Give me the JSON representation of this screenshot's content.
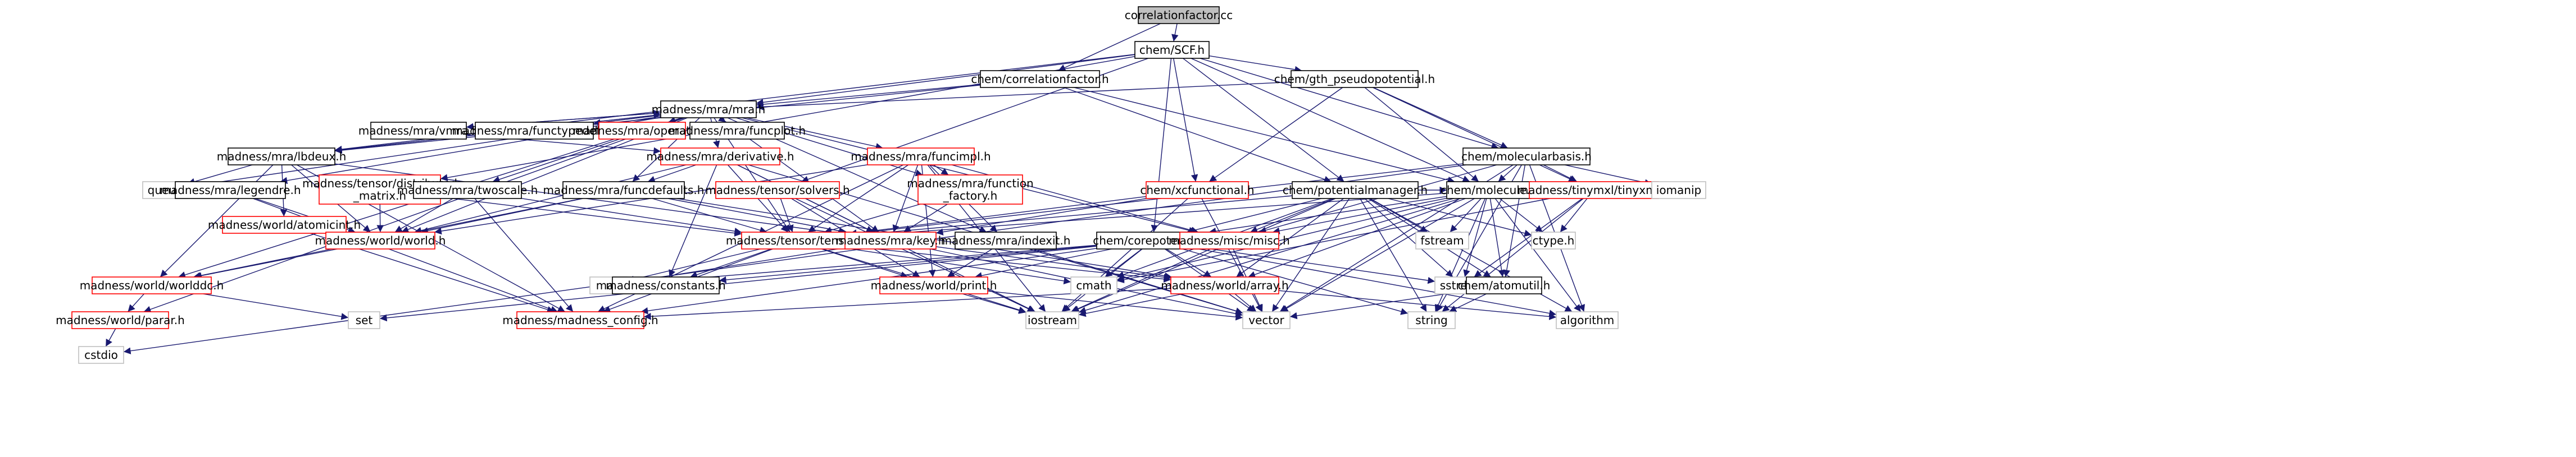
{
  "nodes": [
    {
      "id": "root",
      "label": "correlationfactor.cc",
      "kind": "root"
    },
    {
      "id": "scf",
      "label": "chem/SCF.h",
      "kind": "normal"
    },
    {
      "id": "corrf",
      "label": "chem/correlationfactor.h",
      "kind": "normal"
    },
    {
      "id": "gth",
      "label": "chem/gth_pseudopotential.h",
      "kind": "normal"
    },
    {
      "id": "mra",
      "label": "madness/mra/mra.h",
      "kind": "normal"
    },
    {
      "id": "vmra",
      "label": "madness/mra/vmra.h",
      "kind": "normal"
    },
    {
      "id": "ftypedefs",
      "label": "madness/mra/functypedefs.h",
      "kind": "normal"
    },
    {
      "id": "operator",
      "label": "madness/mra/operator.h",
      "kind": "red"
    },
    {
      "id": "funcplot",
      "label": "madness/mra/funcplot.h",
      "kind": "normal"
    },
    {
      "id": "lbdeux",
      "label": "madness/mra/lbdeux.h",
      "kind": "normal"
    },
    {
      "id": "derivative",
      "label": "madness/mra/derivative.h",
      "kind": "red"
    },
    {
      "id": "funcimpl",
      "label": "madness/mra/funcimpl.h",
      "kind": "red"
    },
    {
      "id": "molbasis",
      "label": "chem/molecularbasis.h",
      "kind": "normal"
    },
    {
      "id": "queue",
      "label": "queue",
      "kind": "plain"
    },
    {
      "id": "legendre",
      "label": "madness/mra/legendre.h",
      "kind": "normal"
    },
    {
      "id": "distmatrix",
      "label": "madness/tensor/distributed\n_matrix.h",
      "kind": "red"
    },
    {
      "id": "twoscale",
      "label": "madness/mra/twoscale.h",
      "kind": "normal"
    },
    {
      "id": "funcdefaults",
      "label": "madness/mra/funcdefaults.h",
      "kind": "normal"
    },
    {
      "id": "solvers",
      "label": "madness/tensor/solvers.h",
      "kind": "red"
    },
    {
      "id": "funcfactory",
      "label": "madness/mra/function\n_factory.h",
      "kind": "red"
    },
    {
      "id": "xcfunc",
      "label": "chem/xcfunctional.h",
      "kind": "red"
    },
    {
      "id": "potmgr",
      "label": "chem/potentialmanager.h",
      "kind": "normal"
    },
    {
      "id": "molecule",
      "label": "chem/molecule.h",
      "kind": "normal"
    },
    {
      "id": "tinyxml",
      "label": "madness/tinymxl/tinyxml.h",
      "kind": "red"
    },
    {
      "id": "iomanip",
      "label": "iomanip",
      "kind": "plain"
    },
    {
      "id": "atomutil",
      "label": "madness/world/atomicint.h",
      "kind": "red"
    },
    {
      "id": "world",
      "label": "madness/world/world.h",
      "kind": "red"
    },
    {
      "id": "tensor",
      "label": "madness/tensor/tensor.h",
      "kind": "red"
    },
    {
      "id": "key",
      "label": "madness/mra/key.h",
      "kind": "red"
    },
    {
      "id": "indexit",
      "label": "madness/mra/indexit.h",
      "kind": "normal"
    },
    {
      "id": "corepot",
      "label": "chem/corepotential.h",
      "kind": "normal"
    },
    {
      "id": "misc",
      "label": "madness/misc/misc.h",
      "kind": "red"
    },
    {
      "id": "fstream",
      "label": "fstream",
      "kind": "plain"
    },
    {
      "id": "ctype",
      "label": "ctype.h",
      "kind": "plain"
    },
    {
      "id": "worlddc",
      "label": "madness/world/worlddc.h",
      "kind": "red"
    },
    {
      "id": "map",
      "label": "map",
      "kind": "plain"
    },
    {
      "id": "constants",
      "label": "madness/constants.h",
      "kind": "normal"
    },
    {
      "id": "print",
      "label": "madness/world/print.h",
      "kind": "red"
    },
    {
      "id": "cmath",
      "label": "cmath",
      "kind": "plain"
    },
    {
      "id": "array",
      "label": "madness/world/array.h",
      "kind": "red"
    },
    {
      "id": "sstream",
      "label": "sstream",
      "kind": "plain"
    },
    {
      "id": "atomutilh",
      "label": "chem/atomutil.h",
      "kind": "normal"
    },
    {
      "id": "parar",
      "label": "madness/world/parar.h",
      "kind": "red"
    },
    {
      "id": "set",
      "label": "set",
      "kind": "plain"
    },
    {
      "id": "config",
      "label": "madness/madness_config.h",
      "kind": "red"
    },
    {
      "id": "iostream",
      "label": "iostream",
      "kind": "plain"
    },
    {
      "id": "vector",
      "label": "vector",
      "kind": "plain"
    },
    {
      "id": "string",
      "label": "string",
      "kind": "plain"
    },
    {
      "id": "algorithm",
      "label": "algorithm",
      "kind": "plain"
    },
    {
      "id": "cstdio",
      "label": "cstdio",
      "kind": "plain"
    }
  ],
  "edges": [
    [
      "root",
      "scf"
    ],
    [
      "root",
      "corrf"
    ],
    [
      "scf",
      "mra"
    ],
    [
      "scf",
      "gth"
    ],
    [
      "scf",
      "molbasis"
    ],
    [
      "scf",
      "molecule"
    ],
    [
      "scf",
      "xcfunc"
    ],
    [
      "scf",
      "potmgr"
    ],
    [
      "scf",
      "solvers"
    ],
    [
      "scf",
      "distmatrix"
    ],
    [
      "scf",
      "lbdeux"
    ],
    [
      "scf",
      "corepot"
    ],
    [
      "corrf",
      "mra"
    ],
    [
      "corrf",
      "molecule"
    ],
    [
      "corrf",
      "potmgr"
    ],
    [
      "corrf",
      "lbdeux"
    ],
    [
      "gth",
      "mra"
    ],
    [
      "gth",
      "molbasis"
    ],
    [
      "gth",
      "molecule"
    ],
    [
      "gth",
      "xcfunc"
    ],
    [
      "gth",
      "tinyxml"
    ],
    [
      "mra",
      "vmra"
    ],
    [
      "mra",
      "ftypedefs"
    ],
    [
      "mra",
      "operator"
    ],
    [
      "mra",
      "funcplot"
    ],
    [
      "mra",
      "lbdeux"
    ],
    [
      "mra",
      "derivative"
    ],
    [
      "mra",
      "funcimpl"
    ],
    [
      "mra",
      "legendre"
    ],
    [
      "mra",
      "twoscale"
    ],
    [
      "mra",
      "funcdefaults"
    ],
    [
      "mra",
      "funcfactory"
    ],
    [
      "mra",
      "world"
    ],
    [
      "mra",
      "tensor"
    ],
    [
      "mra",
      "key"
    ],
    [
      "mra",
      "indexit"
    ],
    [
      "mra",
      "misc"
    ],
    [
      "mra",
      "worlddc"
    ],
    [
      "mra",
      "parar"
    ],
    [
      "mra",
      "queue"
    ],
    [
      "vmra",
      "mra"
    ],
    [
      "vmra",
      "derivative"
    ],
    [
      "lbdeux",
      "mra"
    ],
    [
      "lbdeux",
      "world"
    ],
    [
      "lbdeux",
      "worlddc"
    ],
    [
      "lbdeux",
      "atomutil"
    ],
    [
      "lbdeux",
      "key"
    ],
    [
      "lbdeux",
      "queue"
    ],
    [
      "lbdeux",
      "config"
    ],
    [
      "derivative",
      "funcdefaults"
    ],
    [
      "derivative",
      "tensor"
    ],
    [
      "derivative",
      "key"
    ],
    [
      "derivative",
      "constants"
    ],
    [
      "derivative",
      "world"
    ],
    [
      "derivative",
      "iostream"
    ],
    [
      "derivative",
      "vector"
    ],
    [
      "funcimpl",
      "funcfactory"
    ],
    [
      "funcimpl",
      "tensor"
    ],
    [
      "funcimpl",
      "key"
    ],
    [
      "funcimpl",
      "indexit"
    ],
    [
      "funcimpl",
      "misc"
    ],
    [
      "funcimpl",
      "print"
    ],
    [
      "funcimpl",
      "iostream"
    ],
    [
      "funcimpl",
      "config"
    ],
    [
      "funcimpl",
      "world"
    ],
    [
      "molbasis",
      "molecule"
    ],
    [
      "molbasis",
      "tinyxml"
    ],
    [
      "molbasis",
      "iomanip"
    ],
    [
      "molbasis",
      "vector"
    ],
    [
      "molbasis",
      "algorithm"
    ],
    [
      "molbasis",
      "cstdio"
    ],
    [
      "molbasis",
      "string"
    ],
    [
      "molbasis",
      "tensor"
    ],
    [
      "molbasis",
      "misc"
    ],
    [
      "molbasis",
      "atomutilh"
    ],
    [
      "legendre",
      "world"
    ],
    [
      "legendre",
      "config"
    ],
    [
      "distmatrix",
      "world"
    ],
    [
      "distmatrix",
      "tensor"
    ],
    [
      "twoscale",
      "world"
    ],
    [
      "twoscale",
      "tensor"
    ],
    [
      "twoscale",
      "config"
    ],
    [
      "funcdefaults",
      "tensor"
    ],
    [
      "funcdefaults",
      "key"
    ],
    [
      "funcdefaults",
      "world"
    ],
    [
      "funcdefaults",
      "array"
    ],
    [
      "funcdefaults",
      "worlddc"
    ],
    [
      "solvers",
      "tensor"
    ],
    [
      "solvers",
      "print"
    ],
    [
      "solvers",
      "iostream"
    ],
    [
      "funcfactory",
      "key"
    ],
    [
      "funcfactory",
      "tensor"
    ],
    [
      "xcfunc",
      "tensor"
    ],
    [
      "xcfunc",
      "key"
    ],
    [
      "xcfunc",
      "vector"
    ],
    [
      "xcfunc",
      "iostream"
    ],
    [
      "potmgr",
      "corepot"
    ],
    [
      "potmgr",
      "molecule"
    ],
    [
      "potmgr",
      "tensor"
    ],
    [
      "potmgr",
      "misc"
    ],
    [
      "potmgr",
      "string"
    ],
    [
      "potmgr",
      "vector"
    ],
    [
      "potmgr",
      "cmath"
    ],
    [
      "potmgr",
      "fstream"
    ],
    [
      "potmgr",
      "iostream"
    ],
    [
      "potmgr",
      "sstream"
    ],
    [
      "potmgr",
      "algorithm"
    ],
    [
      "potmgr",
      "atomutilh"
    ],
    [
      "potmgr",
      "ctype"
    ],
    [
      "potmgr",
      "array"
    ],
    [
      "molecule",
      "corepot"
    ],
    [
      "molecule",
      "atomutilh"
    ],
    [
      "molecule",
      "tensor"
    ],
    [
      "molecule",
      "misc"
    ],
    [
      "molecule",
      "fstream"
    ],
    [
      "molecule",
      "ctype"
    ],
    [
      "molecule",
      "cmath"
    ],
    [
      "molecule",
      "sstream"
    ],
    [
      "molecule",
      "vector"
    ],
    [
      "molecule",
      "string"
    ],
    [
      "molecule",
      "iostream"
    ],
    [
      "molecule",
      "algorithm"
    ],
    [
      "molecule",
      "array"
    ],
    [
      "tinyxml",
      "ctype"
    ],
    [
      "tinyxml",
      "cmath"
    ],
    [
      "tinyxml",
      "string"
    ],
    [
      "tinyxml",
      "sstream"
    ],
    [
      "atomutil",
      "config"
    ],
    [
      "world",
      "worlddc"
    ],
    [
      "tensor",
      "map"
    ],
    [
      "tensor",
      "constants"
    ],
    [
      "tensor",
      "print"
    ],
    [
      "tensor",
      "cmath"
    ],
    [
      "tensor",
      "array"
    ],
    [
      "tensor",
      "iostream"
    ],
    [
      "tensor",
      "config"
    ],
    [
      "key",
      "map"
    ],
    [
      "key",
      "array"
    ],
    [
      "key",
      "vector"
    ],
    [
      "indexit",
      "print"
    ],
    [
      "indexit",
      "vector"
    ],
    [
      "corepot",
      "constants"
    ],
    [
      "corepot",
      "print"
    ],
    [
      "corepot",
      "cmath"
    ],
    [
      "corepot",
      "array"
    ],
    [
      "corepot",
      "sstream"
    ],
    [
      "corepot",
      "map"
    ],
    [
      "corepot",
      "set"
    ],
    [
      "corepot",
      "iostream"
    ],
    [
      "corepot",
      "vector"
    ],
    [
      "corepot",
      "string"
    ],
    [
      "corepot",
      "algorithm"
    ],
    [
      "corepot",
      "config"
    ],
    [
      "misc",
      "iostream"
    ],
    [
      "misc",
      "vector"
    ],
    [
      "worlddc",
      "parar"
    ],
    [
      "worlddc",
      "set"
    ],
    [
      "print",
      "iostream"
    ],
    [
      "print",
      "vector"
    ],
    [
      "array",
      "vector"
    ],
    [
      "array",
      "algorithm"
    ],
    [
      "array",
      "iostream"
    ],
    [
      "array",
      "config"
    ],
    [
      "atomutilh",
      "string"
    ],
    [
      "atomutilh",
      "vector"
    ],
    [
      "parar",
      "cstdio"
    ]
  ]
}
